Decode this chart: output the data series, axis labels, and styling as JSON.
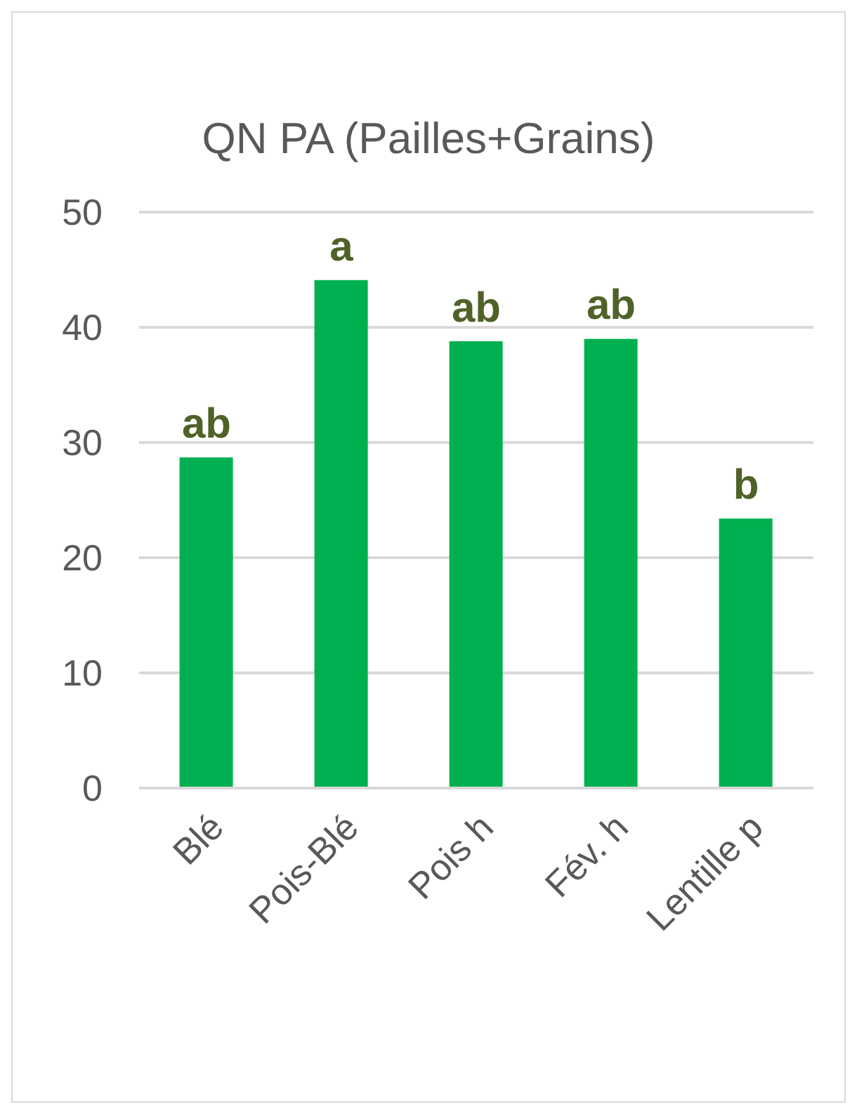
{
  "chart_data": {
    "type": "bar",
    "title": "QN PA (Pailles+Grains)",
    "categories": [
      "Blé",
      "Pois-Blé",
      "Pois h",
      "Fév. h",
      "Lentille p"
    ],
    "values": [
      28.7,
      44.1,
      38.8,
      39.0,
      23.4
    ],
    "color": "#00b050",
    "ylim": [
      0,
      50
    ],
    "yticks": [
      0,
      10,
      20,
      30,
      40,
      50
    ],
    "grid": "y",
    "annotations": [
      {
        "text": "ab",
        "x": "Blé",
        "y": 28.7
      },
      {
        "text": "a",
        "x": "Pois-Blé",
        "y": 44.1
      },
      {
        "text": "ab",
        "x": "Pois h",
        "y": 38.8
      },
      {
        "text": "ab",
        "x": "Fév. h",
        "y": 39.0
      },
      {
        "text": "b",
        "x": "Lentille p",
        "y": 23.4
      }
    ]
  }
}
